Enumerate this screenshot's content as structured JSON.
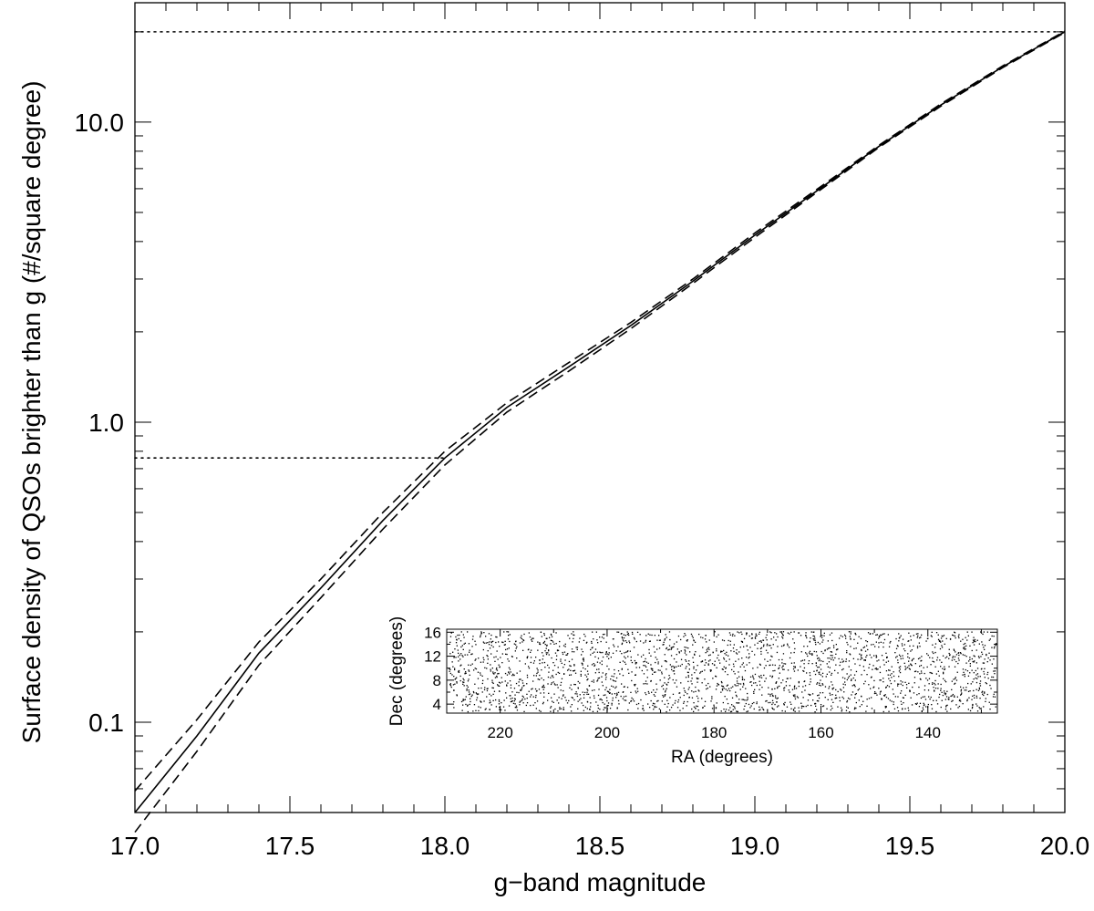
{
  "chart_data": [
    {
      "type": "line",
      "title": "",
      "xlabel": "g−band magnitude",
      "ylabel": "Surface density of QSOs brighter than g (#/square degree)",
      "xlim": [
        17.0,
        20.0
      ],
      "ylim": [
        0.05,
        25.0
      ],
      "yscale": "log",
      "x_ticks": [
        "17.0",
        "17.5",
        "18.0",
        "18.5",
        "19.0",
        "19.5",
        "20.0"
      ],
      "y_ticks": [
        "0.1",
        "1.0",
        "10.0"
      ],
      "grid": false,
      "series": [
        {
          "style": "solid",
          "x": [
            17.0,
            17.2,
            17.4,
            17.6,
            17.8,
            18.0,
            18.2,
            18.4,
            18.6,
            18.8,
            19.0,
            19.2,
            19.4,
            19.6,
            19.8,
            20.0
          ],
          "values": [
            0.05,
            0.09,
            0.17,
            0.28,
            0.47,
            0.76,
            1.12,
            1.53,
            2.1,
            2.95,
            4.2,
            5.9,
            8.3,
            11.4,
            15.3,
            20.0
          ]
        },
        {
          "style": "dashed",
          "x": [
            17.0,
            17.2,
            17.4,
            17.6,
            17.8,
            18.0,
            18.2,
            18.4,
            18.6,
            18.8,
            19.0,
            19.2,
            19.4,
            19.6,
            19.8,
            20.0
          ],
          "values": [
            0.059,
            0.102,
            0.185,
            0.3,
            0.5,
            0.8,
            1.16,
            1.58,
            2.15,
            3.0,
            4.27,
            5.97,
            8.37,
            11.5,
            15.4,
            20.1
          ]
        },
        {
          "style": "dashed",
          "x": [
            17.0,
            17.2,
            17.4,
            17.6,
            17.8,
            18.0,
            18.2,
            18.4,
            18.6,
            18.8,
            19.0,
            19.2,
            19.4,
            19.6,
            19.8,
            20.0
          ],
          "values": [
            0.043,
            0.08,
            0.155,
            0.26,
            0.44,
            0.72,
            1.08,
            1.48,
            2.05,
            2.9,
            4.13,
            5.83,
            8.23,
            11.3,
            15.2,
            19.9
          ]
        }
      ],
      "reference_lines": [
        {
          "style": "dotted",
          "y": 20.0,
          "x_from": 17.0,
          "x_to": 20.0
        },
        {
          "style": "dotted",
          "y": 0.76,
          "x_from": 17.0,
          "x_to": 18.0
        }
      ]
    },
    {
      "type": "scatter",
      "title": "",
      "xlabel": "RA (degrees)",
      "ylabel": "Dec (degrees)",
      "xlim": [
        230,
        127
      ],
      "ylim": [
        2.5,
        16.5
      ],
      "x_ticks": [
        "220",
        "200",
        "180",
        "160",
        "140"
      ],
      "y_ticks": [
        "4",
        "8",
        "12",
        "16"
      ],
      "point_count_approx": 2600,
      "distribution": "uniform random QSO positions across the field"
    }
  ]
}
